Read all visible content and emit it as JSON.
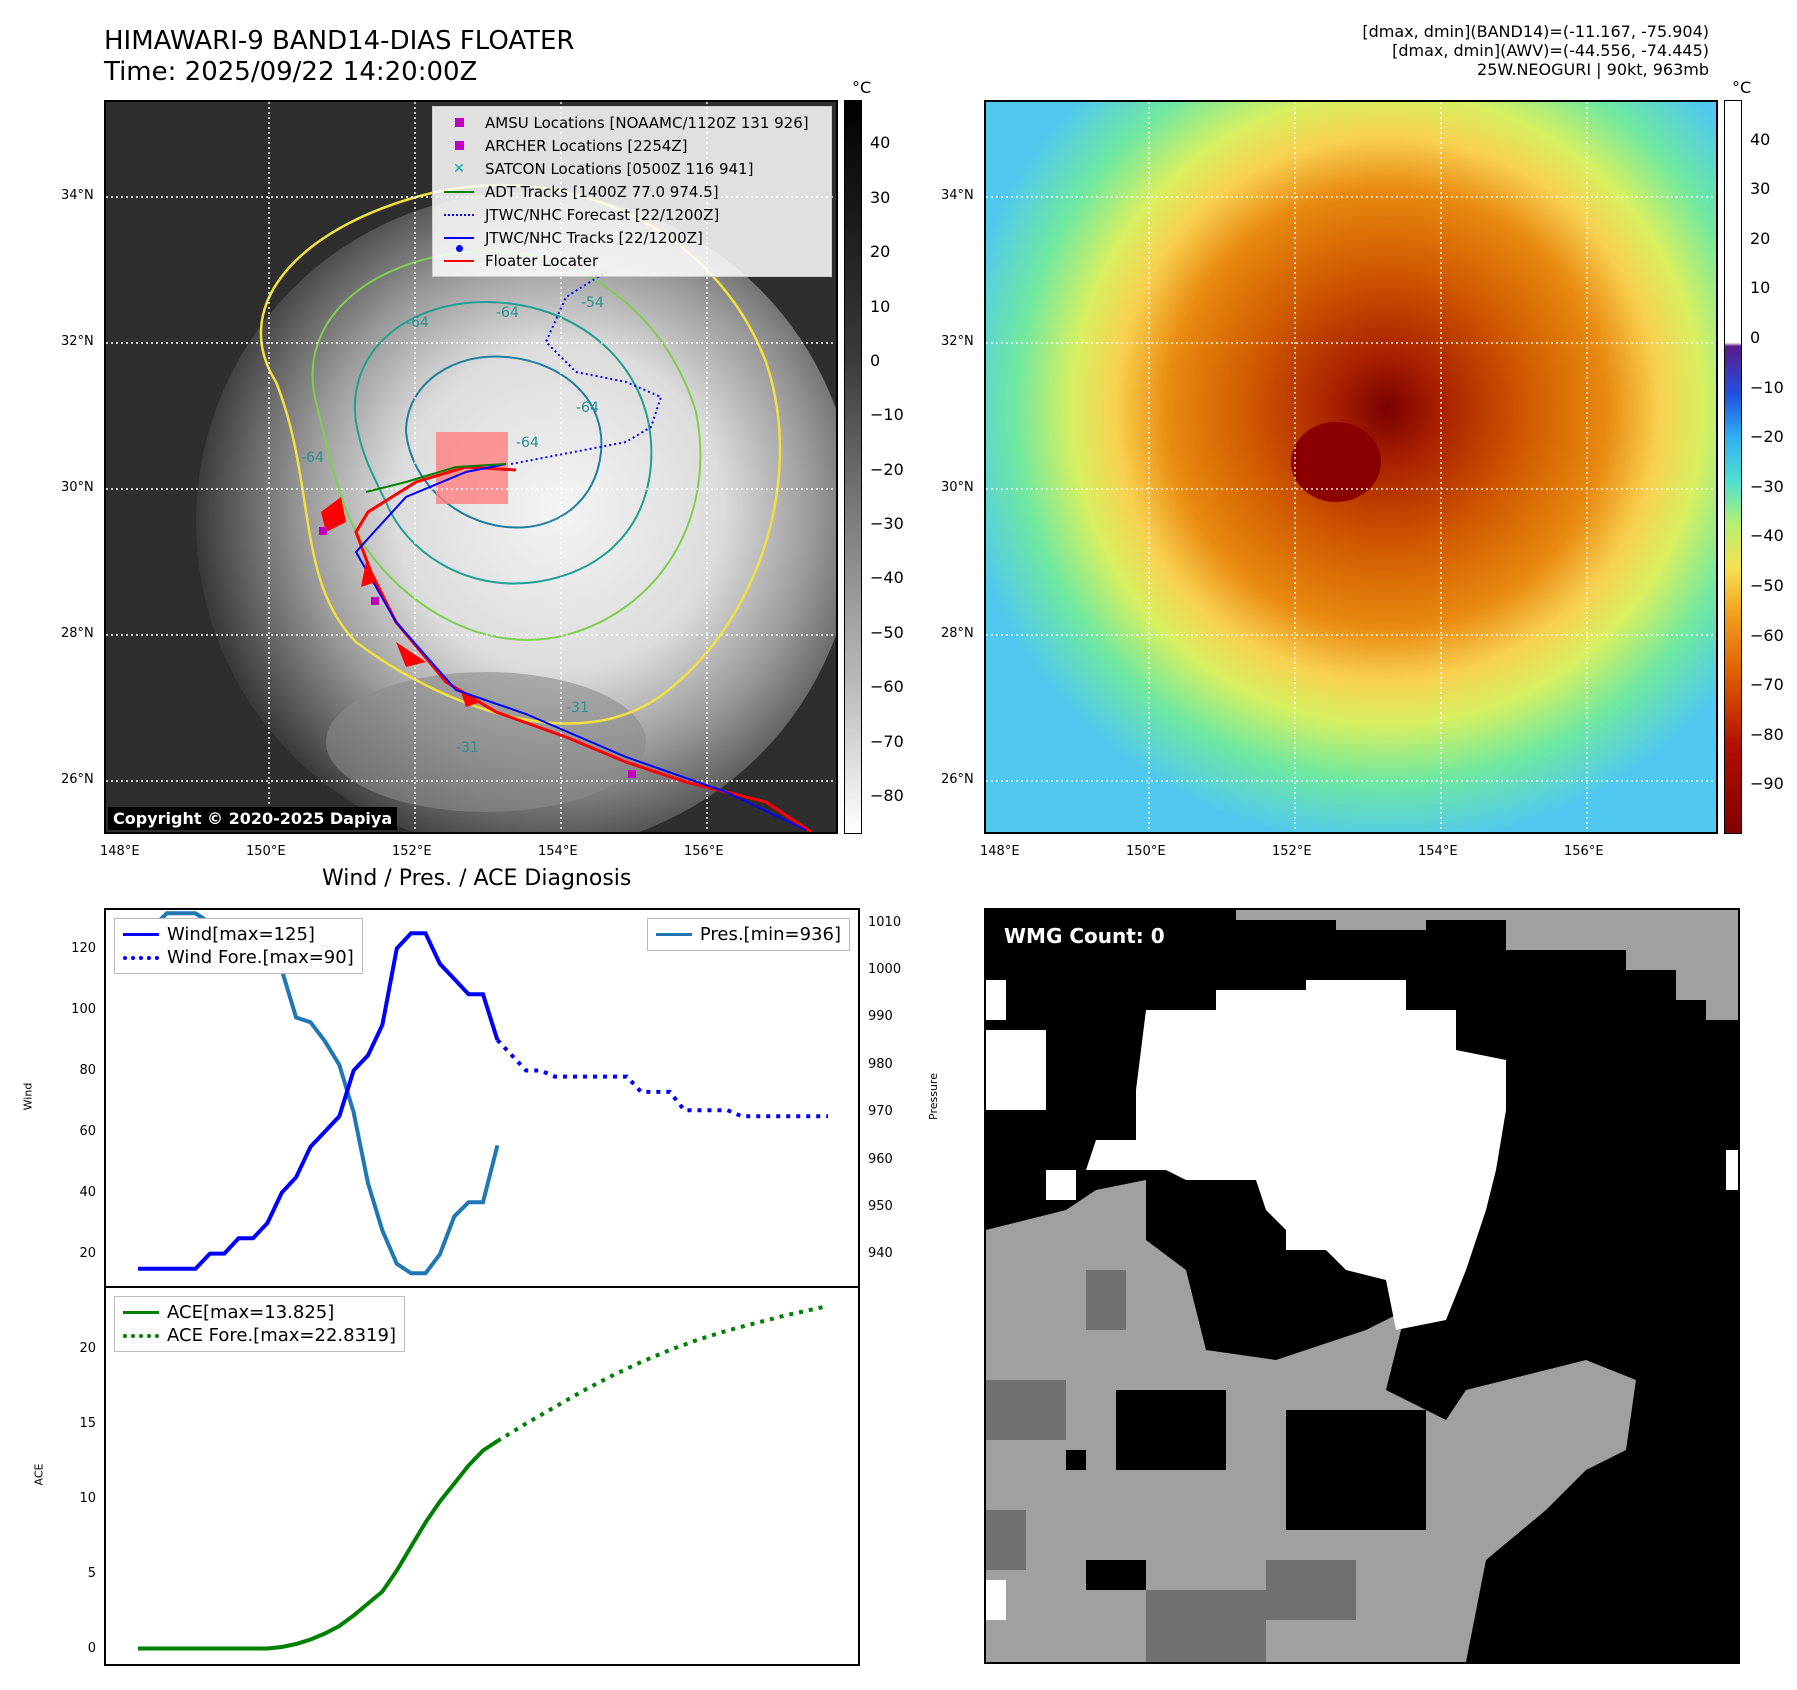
{
  "header": {
    "title_line1": "HIMAWARI-9 BAND14-DIAS FLOATER",
    "title_line2": "Time: 2025/09/22 14:20:00Z",
    "info_line1": "[dmax, dmin](BAND14)=(-11.167, -75.904)",
    "info_line2": "[dmax, dmin](AWV)=(-44.556, -74.445)",
    "info_line3": "25W.NEOGURI | 90kt, 963mb"
  },
  "map_axes": {
    "lat_labels": [
      "34°N",
      "32°N",
      "30°N",
      "28°N",
      "26°N"
    ],
    "lon_labels": [
      "148°E",
      "150°E",
      "152°E",
      "154°E",
      "156°E"
    ]
  },
  "left_map": {
    "copyright": "Copyright © 2020-2025 Dapiya",
    "contour_labels": [
      "-64",
      "-64",
      "-54",
      "-64",
      "-64",
      "-64",
      "-31",
      "-31"
    ],
    "legend": [
      {
        "label": "AMSU Locations [NOAAMC/1120Z 131 926]",
        "color": "#c000c0",
        "symbol": "square"
      },
      {
        "label": "ARCHER Locations [2254Z]",
        "color": "#c000c0",
        "symbol": "square"
      },
      {
        "label": "SATCON Locations [0500Z 116 941]",
        "color": "#00b0b0",
        "symbol": "x"
      },
      {
        "label": "ADT Tracks [1400Z 77.0 974.5]",
        "color": "#008000",
        "symbol": "line"
      },
      {
        "label": "JTWC/NHC Forecast [22/1200Z]",
        "color": "#0000ff",
        "symbol": "dotted"
      },
      {
        "label": "JTWC/NHC Tracks [22/1200Z]",
        "color": "#0000ff",
        "symbol": "line-dot"
      },
      {
        "label": "Floater Locater",
        "color": "#ff0000",
        "symbol": "line"
      }
    ],
    "colorbar": {
      "unit": "°C",
      "ticks": [
        "40",
        "30",
        "20",
        "10",
        "0",
        "−10",
        "−20",
        "−30",
        "−40",
        "−50",
        "−60",
        "−70",
        "−80"
      ]
    }
  },
  "right_map": {
    "colorbar": {
      "unit": "°C",
      "ticks": [
        "40",
        "30",
        "20",
        "10",
        "0",
        "−10",
        "−20",
        "−30",
        "−40",
        "−50",
        "−60",
        "−70",
        "−80",
        "−90"
      ]
    }
  },
  "diagnosis": {
    "title": "Wind / Pres. / ACE Diagnosis",
    "wind_ylabel": "Wind",
    "pres_ylabel": "Pressure",
    "ace_ylabel": "ACE",
    "legend_wind": "Wind[max=125]",
    "legend_wind_fore": "Wind Fore.[max=90]",
    "legend_pres": "Pres.[min=936]",
    "legend_ace": "ACE[max=13.825]",
    "legend_ace_fore": "ACE Fore.[max=22.8319]"
  },
  "wmg": {
    "label": "WMG Count: 0"
  },
  "chart_data": [
    {
      "type": "line",
      "title": "Wind / Pres. / ACE Diagnosis",
      "ylabel": "Wind",
      "ylim": [
        12,
        130
      ],
      "yticks": [
        20,
        40,
        60,
        80,
        100,
        120
      ],
      "x": [
        0,
        1,
        2,
        3,
        4,
        5,
        6,
        7,
        8,
        9,
        10,
        11,
        12,
        13,
        14,
        15,
        16,
        17,
        18,
        19,
        20,
        21,
        22,
        23,
        24,
        25,
        26,
        27
      ],
      "series": [
        {
          "name": "Wind[max=125]",
          "color": "#0000ff",
          "style": "solid",
          "x": [
            0,
            1,
            2,
            3,
            4,
            5,
            6,
            7,
            8,
            9,
            10,
            11,
            12,
            13,
            14,
            15,
            16,
            17,
            18,
            19,
            20,
            21,
            22,
            23,
            24,
            25
          ],
          "values": [
            15,
            15,
            15,
            15,
            15,
            20,
            20,
            25,
            25,
            30,
            40,
            45,
            55,
            60,
            65,
            80,
            85,
            95,
            120,
            125,
            125,
            115,
            110,
            105,
            105,
            90
          ]
        },
        {
          "name": "Wind Fore.[max=90]",
          "color": "#0000ff",
          "style": "dotted",
          "x": [
            25,
            26,
            27,
            28,
            29,
            30,
            31,
            32,
            33,
            34,
            35,
            36,
            37,
            38,
            39,
            40,
            41,
            42,
            43,
            44,
            45,
            46,
            47,
            48
          ],
          "values": [
            90,
            85,
            80,
            80,
            78,
            78,
            78,
            78,
            78,
            78,
            73,
            73,
            73,
            67,
            67,
            67,
            67,
            65,
            65,
            65,
            65,
            65,
            65,
            65
          ]
        }
      ]
    },
    {
      "type": "line",
      "ylabel": "Pressure",
      "ylim": [
        935,
        1011
      ],
      "yticks": [
        940,
        950,
        960,
        970,
        980,
        990,
        1000,
        1010
      ],
      "series": [
        {
          "name": "Pres.[min=936]",
          "color": "#1f77b4",
          "style": "solid",
          "x": [
            0,
            1,
            2,
            3,
            4,
            5,
            6,
            7,
            8,
            9,
            10,
            11,
            12,
            13,
            14,
            15,
            16,
            17,
            18,
            19,
            20,
            21,
            22,
            23,
            24,
            25
          ],
          "values": [
            1009,
            1009,
            1012,
            1012,
            1012,
            1010,
            1010,
            1010,
            1010,
            1005,
            1000,
            990,
            989,
            985,
            980,
            970,
            955,
            945,
            938,
            936,
            936,
            940,
            948,
            951,
            951,
            963
          ]
        }
      ]
    },
    {
      "type": "line",
      "ylabel": "ACE",
      "ylim": [
        -0.5,
        23.5
      ],
      "yticks": [
        0,
        5,
        10,
        15,
        20
      ],
      "series": [
        {
          "name": "ACE[max=13.825]",
          "color": "#008000",
          "style": "solid",
          "x": [
            0,
            1,
            2,
            3,
            4,
            5,
            6,
            7,
            8,
            9,
            10,
            11,
            12,
            13,
            14,
            15,
            16,
            17,
            18,
            19,
            20,
            21,
            22,
            23,
            24,
            25
          ],
          "values": [
            0,
            0,
            0,
            0,
            0,
            0,
            0,
            0,
            0,
            0,
            0.1,
            0.3,
            0.6,
            1.0,
            1.5,
            2.2,
            3.0,
            3.8,
            5.2,
            6.8,
            8.4,
            9.8,
            11.0,
            12.2,
            13.2,
            13.825
          ]
        },
        {
          "name": "ACE Fore.[max=22.8319]",
          "color": "#008000",
          "style": "dotted",
          "x": [
            25,
            27,
            29,
            31,
            33,
            35,
            37,
            39,
            41,
            43,
            45,
            48
          ],
          "values": [
            13.825,
            15.0,
            16.1,
            17.2,
            18.2,
            19.1,
            19.9,
            20.6,
            21.2,
            21.7,
            22.2,
            22.8319
          ]
        }
      ]
    }
  ]
}
